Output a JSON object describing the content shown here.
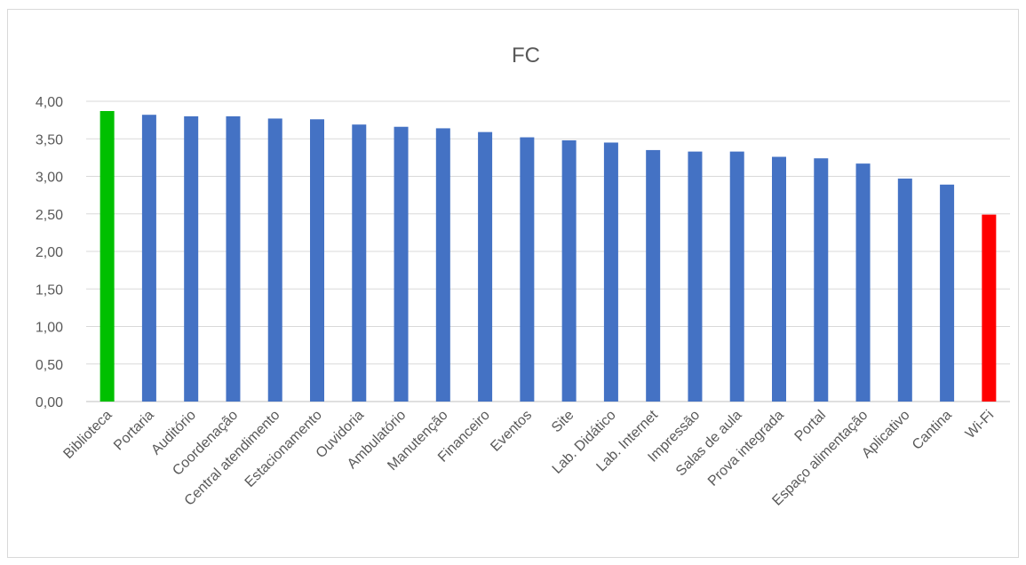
{
  "chart_data": {
    "type": "bar",
    "title": "FC",
    "xlabel": "",
    "ylabel": "",
    "ylim": [
      0,
      4
    ],
    "yticks": [
      "0,00",
      "0,50",
      "1,00",
      "1,50",
      "2,00",
      "2,50",
      "3,00",
      "3,50",
      "4,00"
    ],
    "grid": true,
    "categories": [
      "Biblioteca",
      "Portaria",
      "Auditório",
      "Coordenação",
      "Central atendimento",
      "Estacionamento",
      "Ouvidoria",
      "Ambulatório",
      "Manutenção",
      "Financeiro",
      "Eventos",
      "Site",
      "Lab. Didático",
      "Lab. Internet",
      "Impressão",
      "Salas de aula",
      "Prova integrada",
      "Portal",
      "Espaço alimentação",
      "Aplicativo",
      "Cantina",
      "Wi-Fi"
    ],
    "values": [
      3.87,
      3.82,
      3.8,
      3.8,
      3.77,
      3.76,
      3.69,
      3.66,
      3.64,
      3.59,
      3.52,
      3.48,
      3.45,
      3.35,
      3.33,
      3.33,
      3.26,
      3.24,
      3.17,
      2.97,
      2.89,
      2.49
    ],
    "colors": {
      "default": "#4472c4",
      "highest": "#00c000",
      "lowest": "#ff0000",
      "grid": "#d9d9d9",
      "axis": "#bfbfbf",
      "text": "#595959"
    }
  }
}
